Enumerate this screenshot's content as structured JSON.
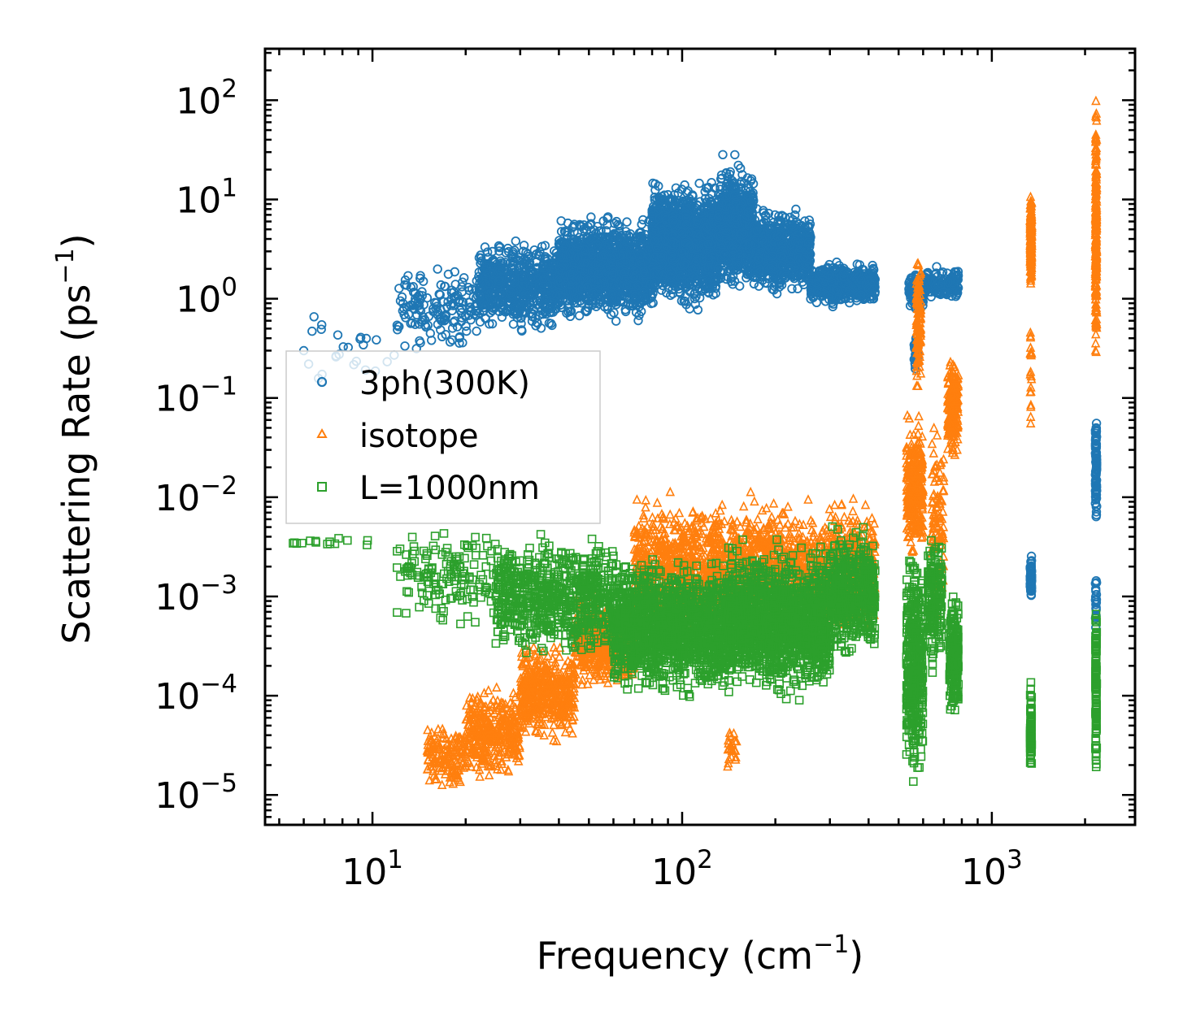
{
  "chart_data": {
    "type": "scatter",
    "title": "",
    "xlabel": "Frequency (cm",
    "xlabel_sup": "−1",
    "xlabel_end": ")",
    "ylabel": "Scattering Rate (ps",
    "ylabel_sup": "−1",
    "ylabel_end": ")",
    "xscale": "log",
    "yscale": "log",
    "xlim": [
      4.5,
      2900
    ],
    "ylim": [
      5e-06,
      330
    ],
    "grid": false,
    "legend_position": "center-left",
    "x_ticks": [
      {
        "value": 10,
        "base": "10",
        "exp": "1"
      },
      {
        "value": 100,
        "base": "10",
        "exp": "2"
      },
      {
        "value": 1000,
        "base": "10",
        "exp": "3"
      }
    ],
    "y_ticks": [
      {
        "value": 1e-05,
        "base": "10",
        "exp": "−5"
      },
      {
        "value": 0.0001,
        "base": "10",
        "exp": "−4"
      },
      {
        "value": 0.001,
        "base": "10",
        "exp": "−3"
      },
      {
        "value": 0.01,
        "base": "10",
        "exp": "−2"
      },
      {
        "value": 0.1,
        "base": "10",
        "exp": "−1"
      },
      {
        "value": 1,
        "base": "10",
        "exp": "0"
      },
      {
        "value": 10,
        "base": "10",
        "exp": "1"
      },
      {
        "value": 100,
        "base": "10",
        "exp": "2"
      }
    ],
    "series": [
      {
        "name": "3ph(300K)",
        "marker": "circle",
        "color": "#1f77b4",
        "bands": [
          {
            "x": [
              5.5,
              12
            ],
            "y": [
              0.08,
              1.0
            ],
            "n": 25
          },
          {
            "x": [
              12,
              22
            ],
            "y": [
              0.25,
              2.5
            ],
            "n": 160
          },
          {
            "x": [
              22,
              40
            ],
            "y": [
              0.4,
              4.5
            ],
            "n": 600
          },
          {
            "x": [
              40,
              80
            ],
            "y": [
              0.5,
              8
            ],
            "n": 1300
          },
          {
            "x": [
              80,
              130
            ],
            "y": [
              0.7,
              18
            ],
            "n": 1500
          },
          {
            "x": [
              130,
              170
            ],
            "y": [
              1.0,
              30
            ],
            "n": 700
          },
          {
            "x": [
              170,
              260
            ],
            "y": [
              1.0,
              9
            ],
            "n": 700
          },
          {
            "x": [
              260,
              420
            ],
            "y": [
              0.8,
              2.5
            ],
            "n": 500
          },
          {
            "x": [
              540,
              600
            ],
            "y": [
              0.7,
              2.0
            ],
            "n": 150
          },
          {
            "x": [
              600,
              780
            ],
            "y": [
              0.9,
              2.2
            ],
            "n": 150
          },
          {
            "x": [
              560,
              580
            ],
            "y": [
              0.15,
              0.5
            ],
            "n": 30
          },
          {
            "x": [
              1330,
              1345
            ],
            "y": [
              0.0009,
              0.0028
            ],
            "n": 70
          },
          {
            "x": [
              2160,
              2180
            ],
            "y": [
              0.0045,
              0.1
            ],
            "n": 90
          },
          {
            "x": [
              2160,
              2180
            ],
            "y": [
              0.00035,
              0.002
            ],
            "n": 20
          }
        ]
      },
      {
        "name": "isotope",
        "marker": "triangle",
        "color": "#ff7f0e",
        "bands": [
          {
            "x": [
              15,
              20
            ],
            "y": [
              1e-05,
              6e-05
            ],
            "n": 150
          },
          {
            "x": [
              20,
              30
            ],
            "y": [
              1.2e-05,
              0.00015
            ],
            "n": 350
          },
          {
            "x": [
              30,
              45
            ],
            "y": [
              3e-05,
              0.0004
            ],
            "n": 450
          },
          {
            "x": [
              45,
              70
            ],
            "y": [
              0.0001,
              0.0012
            ],
            "n": 500
          },
          {
            "x": [
              70,
              420
            ],
            "y": [
              0.0003,
              0.012
            ],
            "n": 2000
          },
          {
            "x": [
              140,
              150
            ],
            "y": [
              1.5e-05,
              5e-05
            ],
            "n": 25
          },
          {
            "x": [
              530,
              600
            ],
            "y": [
              0.002,
              0.08
            ],
            "n": 300
          },
          {
            "x": [
              570,
              590
            ],
            "y": [
              0.08,
              3.5
            ],
            "n": 120
          },
          {
            "x": [
              640,
              700
            ],
            "y": [
              0.0005,
              0.08
            ],
            "n": 100
          },
          {
            "x": [
              720,
              780
            ],
            "y": [
              0.02,
              0.3
            ],
            "n": 200
          },
          {
            "x": [
              1330,
              1345
            ],
            "y": [
              1.0,
              17
            ],
            "n": 200
          },
          {
            "x": [
              1330,
              1345
            ],
            "y": [
              0.05,
              0.9
            ],
            "n": 20
          },
          {
            "x": [
              2160,
              2180
            ],
            "y": [
              0.13,
              150
            ],
            "n": 260
          }
        ]
      },
      {
        "name": "L=1000nm",
        "marker": "square",
        "color": "#2ca02c",
        "bands": [
          {
            "x": [
              5.5,
              12
            ],
            "y": [
              0.003,
              0.004
            ],
            "n": 15
          },
          {
            "x": [
              12,
              25
            ],
            "y": [
              0.0004,
              0.007
            ],
            "n": 150
          },
          {
            "x": [
              25,
              60
            ],
            "y": [
              0.0002,
              0.005
            ],
            "n": 700
          },
          {
            "x": [
              60,
              140
            ],
            "y": [
              8e-05,
              0.003
            ],
            "n": 1500
          },
          {
            "x": [
              140,
              300
            ],
            "y": [
              8e-05,
              0.004
            ],
            "n": 1500
          },
          {
            "x": [
              300,
              420
            ],
            "y": [
              0.0002,
              0.006
            ],
            "n": 500
          },
          {
            "x": [
              530,
              600
            ],
            "y": [
              1e-05,
              0.004
            ],
            "n": 400
          },
          {
            "x": [
              620,
              690
            ],
            "y": [
              0.00015,
              0.007
            ],
            "n": 200
          },
          {
            "x": [
              730,
              780
            ],
            "y": [
              5e-05,
              0.0012
            ],
            "n": 200
          },
          {
            "x": [
              1330,
              1345
            ],
            "y": [
              1e-05,
              0.0002
            ],
            "n": 80
          },
          {
            "x": [
              2160,
              2180
            ],
            "y": [
              1.2e-05,
              0.0015
            ],
            "n": 130
          }
        ]
      }
    ]
  }
}
